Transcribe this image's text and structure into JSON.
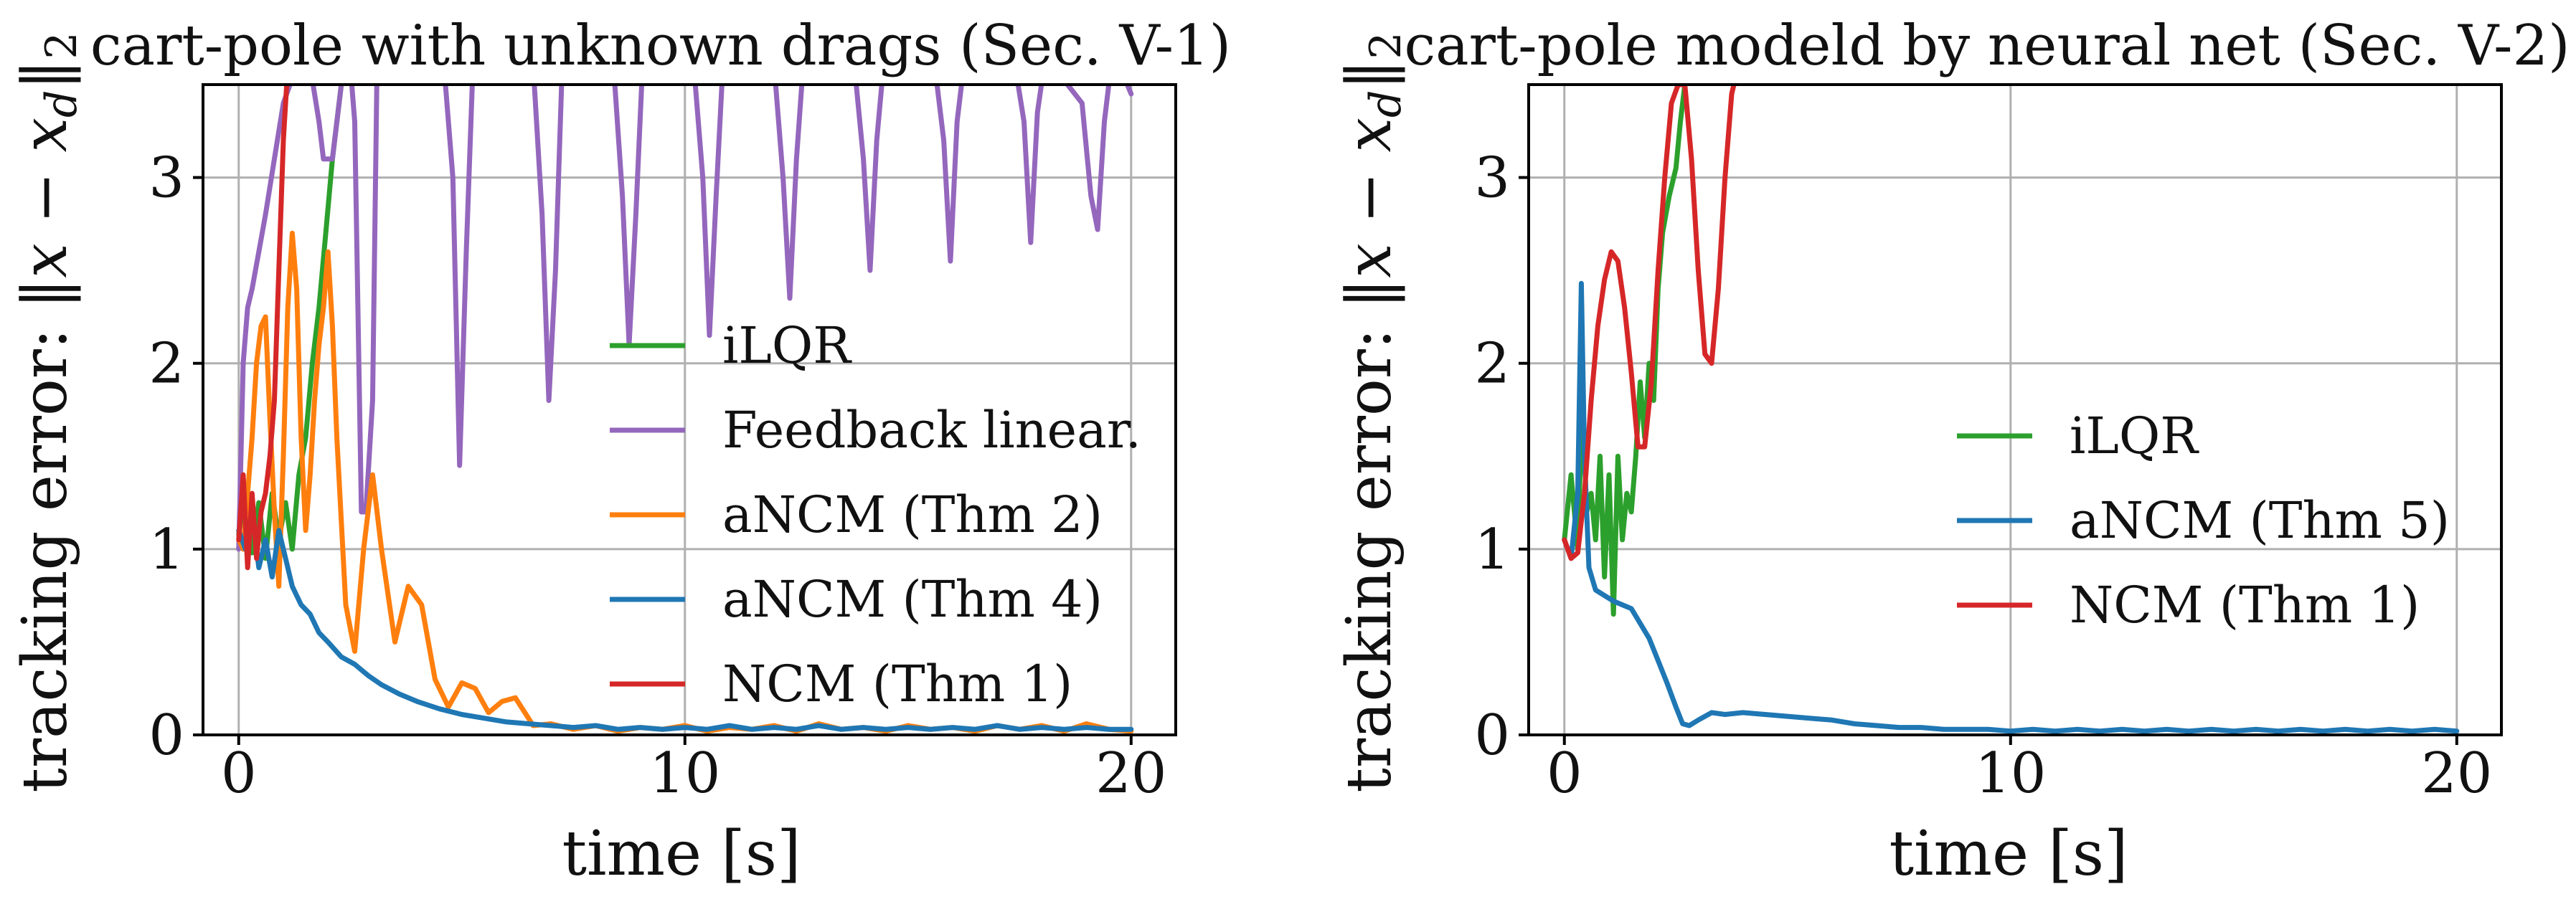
{
  "figure": {
    "background": "#ffffff",
    "grid_color": "#b0b0b0",
    "axis_color": "#000000"
  },
  "chart_data": [
    {
      "type": "line",
      "title": "cart-pole with unknown drags (Sec. V-1)",
      "xlabel": "time [s]",
      "ylabel": "tracking error: ‖x − x_d‖₂",
      "xlim": [
        -0.8,
        21.0
      ],
      "ylim": [
        0,
        3.5
      ],
      "xticks": [
        0,
        10,
        20
      ],
      "xtick_labels": [
        "0",
        "10",
        "20"
      ],
      "yticks": [
        0,
        1,
        2,
        3
      ],
      "ytick_labels": [
        "0",
        "1",
        "2",
        "3"
      ],
      "grid": true,
      "legend_position": "center-right",
      "series": [
        {
          "name": "iLQR",
          "color": "#2ca02c",
          "x": [
            0,
            0.15,
            0.3,
            0.45,
            0.6,
            0.75,
            0.9,
            1.05,
            1.2,
            1.35,
            1.5,
            1.65,
            1.8,
            1.95,
            2.1,
            2.25,
            2.35
          ],
          "y": [
            1.08,
            1.3,
            0.98,
            1.25,
            0.95,
            1.3,
            1.05,
            1.25,
            1.0,
            1.4,
            1.6,
            2.0,
            2.3,
            2.7,
            3.1,
            3.4,
            3.6
          ]
        },
        {
          "name": "Feedback linear.",
          "color": "#9467bd",
          "x": [
            0,
            0.1,
            0.2,
            0.3,
            0.45,
            0.6,
            0.8,
            1.0,
            1.3,
            1.6,
            1.8,
            1.9,
            2.1,
            2.35,
            2.5,
            2.6,
            2.75,
            2.85,
            3.0,
            3.1,
            3.3,
            4.6,
            4.8,
            4.95,
            5.1,
            5.25,
            5.45,
            6.6,
            6.8,
            6.95,
            7.1,
            7.25,
            7.45,
            8.4,
            8.6,
            8.75,
            8.9,
            9.05,
            9.25,
            10.2,
            10.4,
            10.55,
            10.7,
            10.85,
            11.05,
            12.0,
            12.2,
            12.35,
            12.5,
            12.65,
            12.85,
            13.8,
            14.0,
            14.15,
            14.3,
            14.45,
            14.65,
            15.6,
            15.8,
            15.95,
            16.1,
            16.25,
            16.45,
            17.4,
            17.6,
            17.75,
            17.9,
            18.05,
            18.25,
            18.9,
            19.1,
            19.25,
            19.4,
            19.55,
            19.75,
            20.0
          ],
          "y": [
            1.0,
            2.0,
            2.3,
            2.4,
            2.6,
            2.8,
            3.1,
            3.4,
            3.6,
            3.6,
            3.3,
            3.1,
            3.1,
            3.6,
            3.6,
            3.3,
            1.2,
            1.2,
            1.8,
            3.6,
            3.6,
            3.6,
            3.0,
            1.45,
            2.6,
            3.6,
            3.6,
            3.6,
            2.8,
            1.8,
            2.5,
            3.6,
            3.6,
            3.6,
            2.9,
            2.1,
            2.8,
            3.6,
            3.6,
            3.6,
            3.0,
            2.15,
            2.9,
            3.6,
            3.6,
            3.6,
            3.0,
            2.35,
            3.1,
            3.6,
            3.6,
            3.6,
            3.1,
            2.5,
            3.2,
            3.6,
            3.6,
            3.6,
            3.2,
            2.55,
            3.3,
            3.6,
            3.6,
            3.6,
            3.3,
            2.65,
            3.35,
            3.6,
            3.6,
            3.4,
            2.9,
            2.72,
            3.3,
            3.6,
            3.6,
            3.45
          ]
        },
        {
          "name": "aNCM (Thm 2)",
          "color": "#ff7f0e",
          "x": [
            0,
            0.1,
            0.2,
            0.3,
            0.4,
            0.5,
            0.6,
            0.7,
            0.8,
            0.9,
            1.0,
            1.1,
            1.2,
            1.3,
            1.4,
            1.5,
            1.6,
            1.7,
            1.8,
            1.9,
            2.0,
            2.1,
            2.2,
            2.4,
            2.6,
            2.8,
            3.0,
            3.2,
            3.5,
            3.8,
            4.1,
            4.4,
            4.7,
            5.0,
            5.3,
            5.6,
            5.9,
            6.2,
            6.6,
            7.0,
            7.5,
            8.0,
            8.5,
            9.0,
            9.5,
            10.0,
            10.5,
            11.0,
            11.5,
            12.0,
            12.5,
            13.0,
            13.5,
            14.0,
            14.5,
            15.0,
            15.5,
            16.0,
            16.5,
            17.0,
            17.5,
            18.0,
            18.5,
            19.0,
            19.5,
            20.0
          ],
          "y": [
            1.05,
            1.0,
            1.3,
            1.6,
            2.0,
            2.2,
            2.25,
            1.7,
            1.2,
            0.8,
            1.5,
            2.3,
            2.7,
            2.4,
            1.6,
            1.1,
            1.4,
            1.8,
            2.1,
            2.3,
            2.6,
            2.2,
            1.6,
            0.7,
            0.45,
            1.0,
            1.4,
            1.0,
            0.5,
            0.8,
            0.7,
            0.3,
            0.15,
            0.28,
            0.25,
            0.12,
            0.18,
            0.2,
            0.05,
            0.06,
            0.03,
            0.05,
            0.02,
            0.04,
            0.03,
            0.05,
            0.02,
            0.04,
            0.03,
            0.05,
            0.02,
            0.06,
            0.03,
            0.04,
            0.02,
            0.05,
            0.03,
            0.04,
            0.02,
            0.05,
            0.03,
            0.05,
            0.02,
            0.06,
            0.03,
            0.02
          ]
        },
        {
          "name": "aNCM (Thm 4)",
          "color": "#1f77b4",
          "x": [
            0,
            0.15,
            0.3,
            0.45,
            0.6,
            0.75,
            0.9,
            1.05,
            1.2,
            1.4,
            1.6,
            1.8,
            2.0,
            2.3,
            2.6,
            2.9,
            3.2,
            3.6,
            4.0,
            4.5,
            5.0,
            5.5,
            6.0,
            6.5,
            7.0,
            7.5,
            8.0,
            8.5,
            9.0,
            9.5,
            10.0,
            10.5,
            11.0,
            11.5,
            12.0,
            12.5,
            13.0,
            13.5,
            14.0,
            14.5,
            15.0,
            15.5,
            16.0,
            16.5,
            17.0,
            17.5,
            18.0,
            18.5,
            19.0,
            19.5,
            20.0
          ],
          "y": [
            1.1,
            1.0,
            1.2,
            0.9,
            1.05,
            0.85,
            1.1,
            0.95,
            0.8,
            0.7,
            0.65,
            0.55,
            0.5,
            0.42,
            0.38,
            0.32,
            0.27,
            0.22,
            0.18,
            0.14,
            0.11,
            0.09,
            0.07,
            0.06,
            0.05,
            0.04,
            0.05,
            0.03,
            0.04,
            0.03,
            0.04,
            0.03,
            0.05,
            0.03,
            0.04,
            0.03,
            0.05,
            0.03,
            0.04,
            0.03,
            0.04,
            0.03,
            0.04,
            0.03,
            0.05,
            0.03,
            0.04,
            0.03,
            0.04,
            0.03,
            0.03
          ]
        },
        {
          "name": "NCM (Thm 1)",
          "color": "#d62728",
          "x": [
            0,
            0.1,
            0.2,
            0.3,
            0.4,
            0.5,
            0.6,
            0.7,
            0.8,
            0.9,
            1.0,
            1.1
          ],
          "y": [
            1.05,
            1.4,
            0.9,
            1.3,
            0.95,
            1.2,
            1.3,
            1.5,
            1.8,
            2.5,
            3.2,
            3.6
          ]
        }
      ]
    },
    {
      "type": "line",
      "title": "cart-pole modeld by neural net (Sec. V-2)",
      "xlabel": "time [s]",
      "ylabel": "tracking error: ‖x − x_d‖₂",
      "xlim": [
        -0.8,
        21.0
      ],
      "ylim": [
        0,
        3.5
      ],
      "xticks": [
        0,
        10,
        20
      ],
      "xtick_labels": [
        "0",
        "10",
        "20"
      ],
      "yticks": [
        0,
        1,
        2,
        3
      ],
      "ytick_labels": [
        "0",
        "1",
        "2",
        "3"
      ],
      "grid": true,
      "legend_position": "center-right",
      "series": [
        {
          "name": "iLQR",
          "color": "#2ca02c",
          "x": [
            0,
            0.15,
            0.3,
            0.4,
            0.5,
            0.6,
            0.7,
            0.8,
            0.9,
            1.0,
            1.1,
            1.2,
            1.3,
            1.4,
            1.5,
            1.6,
            1.7,
            1.8,
            1.9,
            2.0,
            2.1,
            2.2,
            2.35,
            2.5,
            2.6,
            2.7,
            2.8
          ],
          "y": [
            1.05,
            1.4,
            1.0,
            1.8,
            1.2,
            1.3,
            1.05,
            1.5,
            0.85,
            1.4,
            0.65,
            1.5,
            1.05,
            1.3,
            1.2,
            1.5,
            1.9,
            1.6,
            2.0,
            1.8,
            2.4,
            2.7,
            2.9,
            3.05,
            3.3,
            3.5,
            3.6
          ]
        },
        {
          "name": "aNCM (Thm 5)",
          "color": "#1f77b4",
          "x": [
            0,
            0.15,
            0.3,
            0.38,
            0.45,
            0.55,
            0.7,
            0.9,
            1.1,
            1.3,
            1.5,
            1.7,
            1.9,
            2.1,
            2.3,
            2.5,
            2.65,
            2.8,
            3.0,
            3.3,
            3.6,
            4.0,
            4.5,
            5.0,
            5.5,
            6.0,
            6.5,
            7.0,
            7.5,
            8.0,
            8.5,
            9.0,
            9.5,
            10.0,
            10.5,
            11.0,
            11.5,
            12.0,
            12.5,
            13.0,
            13.5,
            14.0,
            14.5,
            15.0,
            15.5,
            16.0,
            16.5,
            17.0,
            17.5,
            18.0,
            18.5,
            19.0,
            19.5,
            20.0
          ],
          "y": [
            1.05,
            0.95,
            1.3,
            2.43,
            1.5,
            0.9,
            0.78,
            0.75,
            0.72,
            0.7,
            0.68,
            0.6,
            0.52,
            0.4,
            0.28,
            0.15,
            0.06,
            0.05,
            0.08,
            0.12,
            0.11,
            0.12,
            0.11,
            0.1,
            0.09,
            0.08,
            0.06,
            0.05,
            0.04,
            0.04,
            0.03,
            0.03,
            0.03,
            0.02,
            0.03,
            0.02,
            0.03,
            0.02,
            0.03,
            0.02,
            0.03,
            0.02,
            0.03,
            0.02,
            0.03,
            0.02,
            0.03,
            0.02,
            0.03,
            0.02,
            0.03,
            0.02,
            0.03,
            0.02
          ]
        },
        {
          "name": "NCM (Thm 1)",
          "color": "#d62728",
          "x": [
            0,
            0.15,
            0.3,
            0.45,
            0.6,
            0.75,
            0.9,
            1.05,
            1.2,
            1.35,
            1.5,
            1.65,
            1.8,
            1.95,
            2.1,
            2.25,
            2.4,
            2.55,
            2.7,
            2.85,
            3.0,
            3.15,
            3.3,
            3.45,
            3.6,
            3.75,
            3.9
          ],
          "y": [
            1.05,
            0.95,
            0.98,
            1.3,
            1.8,
            2.2,
            2.45,
            2.6,
            2.55,
            2.3,
            1.95,
            1.55,
            1.55,
            1.9,
            2.5,
            3.0,
            3.4,
            3.5,
            3.5,
            3.1,
            2.5,
            2.05,
            2.0,
            2.4,
            3.0,
            3.45,
            3.6
          ]
        }
      ]
    }
  ]
}
